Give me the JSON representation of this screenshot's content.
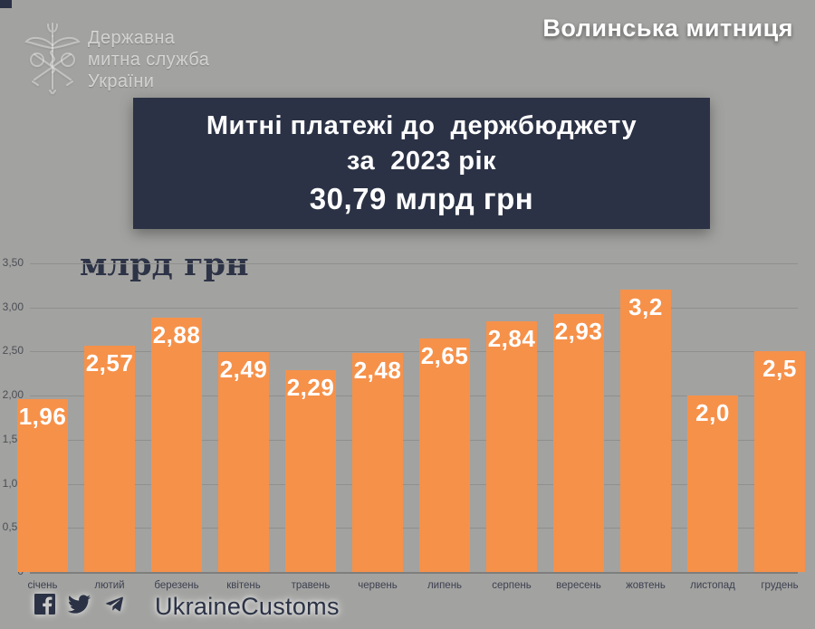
{
  "header": {
    "logo": {
      "line1": "Державна",
      "line2": "митна служба",
      "line3": "України"
    },
    "region_title": "Волинська митниця"
  },
  "title_card": {
    "line1": "Митні платежі до  держбюджету",
    "line2": "за  2023 рік",
    "amount": "30,79 млрд грн"
  },
  "chart_data": {
    "type": "bar",
    "title": "Митні платежі до держбюджету за 2023 рік",
    "unit_label": "млрд грн",
    "categories": [
      "січень",
      "лютий",
      "березень",
      "квітень",
      "травень",
      "червень",
      "липень",
      "серпень",
      "вересень",
      "жовтень",
      "листопад",
      "грудень"
    ],
    "values": [
      1.96,
      2.57,
      2.88,
      2.49,
      2.29,
      2.48,
      2.65,
      2.84,
      2.93,
      3.2,
      2.0,
      2.5
    ],
    "value_labels": [
      "1,96",
      "2,57",
      "2,88",
      "2,49",
      "2,29",
      "2,48",
      "2,65",
      "2,84",
      "2,93",
      "3,2",
      "2,0",
      "2,5"
    ],
    "ylim": [
      0,
      3.5
    ],
    "y_ticks": [
      {
        "value": 3.5,
        "label": "3,50"
      },
      {
        "value": 3.0,
        "label": "3,00"
      },
      {
        "value": 2.5,
        "label": "2,50"
      },
      {
        "value": 2.0,
        "label": "2,00"
      },
      {
        "value": 1.5,
        "label": "1,50"
      },
      {
        "value": 1.0,
        "label": "1,00"
      },
      {
        "value": 0.5,
        "label": "0,50"
      },
      {
        "value": 0.0,
        "label": "0"
      }
    ],
    "grid": true,
    "legend": "none",
    "bar_color": "#f6914a",
    "value_label_color": "#ffffff"
  },
  "footer": {
    "icons": [
      "facebook-icon",
      "twitter-icon",
      "telegram-icon"
    ],
    "handle": "UkraineCustoms"
  },
  "colors": {
    "background": "#a2a2a0",
    "card_navy": "#2b3245",
    "accent_orange": "#f6914a",
    "grid": "#8f8f8e"
  }
}
